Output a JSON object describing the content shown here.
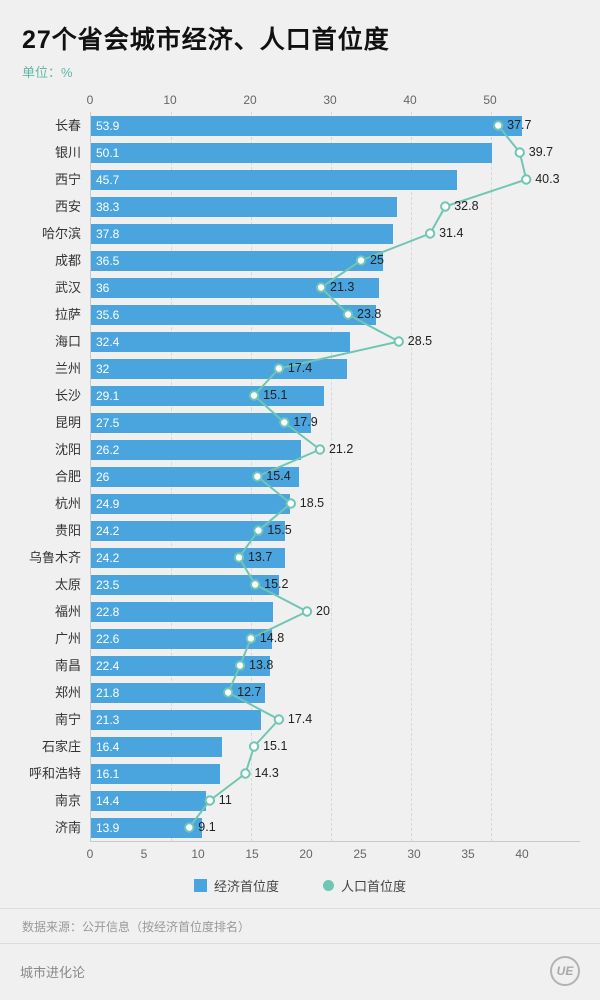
{
  "header": {
    "title": "27个省会城市经济、人口首位度",
    "unit": "单位：%"
  },
  "chart_data": {
    "type": "bar",
    "orientation": "horizontal",
    "title": "27个省会城市经济、人口首位度",
    "unit": "%",
    "categories": [
      "长春",
      "银川",
      "西宁",
      "西安",
      "哈尔滨",
      "成都",
      "武汉",
      "拉萨",
      "海口",
      "兰州",
      "长沙",
      "昆明",
      "沈阳",
      "合肥",
      "杭州",
      "贵阳",
      "乌鲁木齐",
      "太原",
      "福州",
      "广州",
      "南昌",
      "郑州",
      "南宁",
      "石家庄",
      "呼和浩特",
      "南京",
      "济南"
    ],
    "series": [
      {
        "name": "经济首位度",
        "type": "bar",
        "color": "#4aa4de",
        "values": [
          53.9,
          50.1,
          45.7,
          38.3,
          37.8,
          36.5,
          36,
          35.6,
          32.4,
          32,
          29.1,
          27.5,
          26.2,
          26,
          24.9,
          24.2,
          24.2,
          23.5,
          22.8,
          22.6,
          22.4,
          21.8,
          21.3,
          16.4,
          16.1,
          14.4,
          13.9
        ]
      },
      {
        "name": "人口首位度",
        "type": "line",
        "color": "#6fc6b2",
        "values": [
          37.7,
          39.7,
          40.3,
          32.8,
          31.4,
          25,
          21.3,
          23.8,
          28.5,
          17.4,
          15.1,
          17.9,
          21.2,
          15.4,
          18.5,
          15.5,
          13.7,
          15.2,
          20,
          14.8,
          13.8,
          12.7,
          17.4,
          15.1,
          14.3,
          11,
          9.1
        ]
      }
    ],
    "top_axis_ticks": [
      0,
      10,
      20,
      30,
      40,
      50
    ],
    "bottom_axis_ticks": [
      0,
      5,
      10,
      15,
      20,
      25,
      30,
      35,
      40
    ],
    "grid": true,
    "legend_position": "bottom"
  },
  "legend": {
    "items": [
      {
        "label": "经济首位度",
        "color": "#4aa4de",
        "shape": "square"
      },
      {
        "label": "人口首位度",
        "color": "#6fc6b2",
        "shape": "circle"
      }
    ]
  },
  "footer": {
    "source": "数据来源：公开信息（按经济首位度排名）",
    "brand": "城市进化论",
    "logo_text": "UE"
  }
}
